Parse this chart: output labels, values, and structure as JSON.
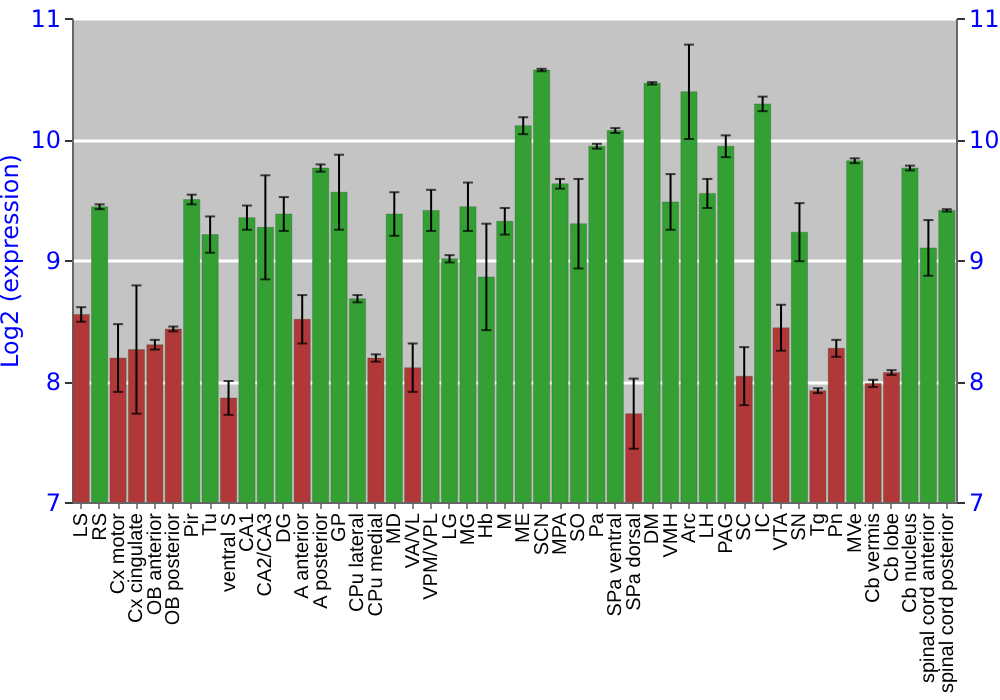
{
  "chart_data": {
    "type": "bar",
    "ylabel": "Log2 (expression)",
    "categories": [
      "LS",
      "RS",
      "Cx motor",
      "Cx cingulate",
      "OB anterior",
      "OB posterior",
      "Pir",
      "Tu",
      "ventral S",
      "CA1",
      "CA2/CA3",
      "DG",
      "A anterior",
      "A posterior",
      "GP",
      "CPu lateral",
      "CPu medial",
      "MD",
      "VA/VL",
      "VPM/VPL",
      "LG",
      "MG",
      "Hb",
      "M",
      "ME",
      "SCN",
      "MPA",
      "SO",
      "Pa",
      "SPa ventral",
      "SPa dorsal",
      "DM",
      "VMH",
      "Arc",
      "LH",
      "PAG",
      "SC",
      "IC",
      "VTA",
      "SN",
      "Tg",
      "Pn",
      "MVe",
      "Cb vermis",
      "Cb lobe",
      "Cb nucleus",
      "spinal cord anterior",
      "spinal cord posterior"
    ],
    "values": [
      8.55,
      9.44,
      8.19,
      8.26,
      8.3,
      8.43,
      9.5,
      9.21,
      7.86,
      9.35,
      9.27,
      9.38,
      8.51,
      9.76,
      9.56,
      8.68,
      8.19,
      9.38,
      8.11,
      9.41,
      9.01,
      9.44,
      8.86,
      9.32,
      10.11,
      10.57,
      9.63,
      9.3,
      9.94,
      10.07,
      7.73,
      10.46,
      9.48,
      10.39,
      9.55,
      9.94,
      8.04,
      10.29,
      8.44,
      9.23,
      7.92,
      8.27,
      9.82,
      7.98,
      8.07,
      9.76,
      9.1,
      9.41
    ],
    "errors": [
      0.06,
      0.02,
      0.28,
      0.53,
      0.04,
      0.02,
      0.04,
      0.15,
      0.14,
      0.1,
      0.43,
      0.14,
      0.2,
      0.03,
      0.31,
      0.03,
      0.03,
      0.18,
      0.2,
      0.17,
      0.03,
      0.2,
      0.44,
      0.11,
      0.07,
      0.01,
      0.04,
      0.37,
      0.02,
      0.02,
      0.29,
      0.01,
      0.23,
      0.39,
      0.12,
      0.09,
      0.24,
      0.06,
      0.19,
      0.24,
      0.02,
      0.07,
      0.02,
      0.03,
      0.02,
      0.02,
      0.23,
      0.01
    ],
    "colors": [
      "#b03838",
      "#34a034",
      "#b03838",
      "#b03838",
      "#b03838",
      "#b03838",
      "#34a034",
      "#34a034",
      "#b03838",
      "#34a034",
      "#34a034",
      "#34a034",
      "#b03838",
      "#34a034",
      "#34a034",
      "#34a034",
      "#b03838",
      "#34a034",
      "#b03838",
      "#34a034",
      "#34a034",
      "#34a034",
      "#34a034",
      "#34a034",
      "#34a034",
      "#34a034",
      "#34a034",
      "#34a034",
      "#34a034",
      "#34a034",
      "#b03838",
      "#34a034",
      "#34a034",
      "#34a034",
      "#34a034",
      "#34a034",
      "#b03838",
      "#34a034",
      "#b03838",
      "#34a034",
      "#b03838",
      "#b03838",
      "#34a034",
      "#b03838",
      "#b03838",
      "#34a034",
      "#34a034",
      "#34a034"
    ],
    "ylim": [
      7,
      11
    ],
    "yticks": [
      7,
      8,
      9,
      10,
      11
    ],
    "y2lim": [
      7,
      11
    ],
    "y2ticks": [
      7,
      8,
      9,
      10,
      11
    ],
    "grid": "y"
  }
}
